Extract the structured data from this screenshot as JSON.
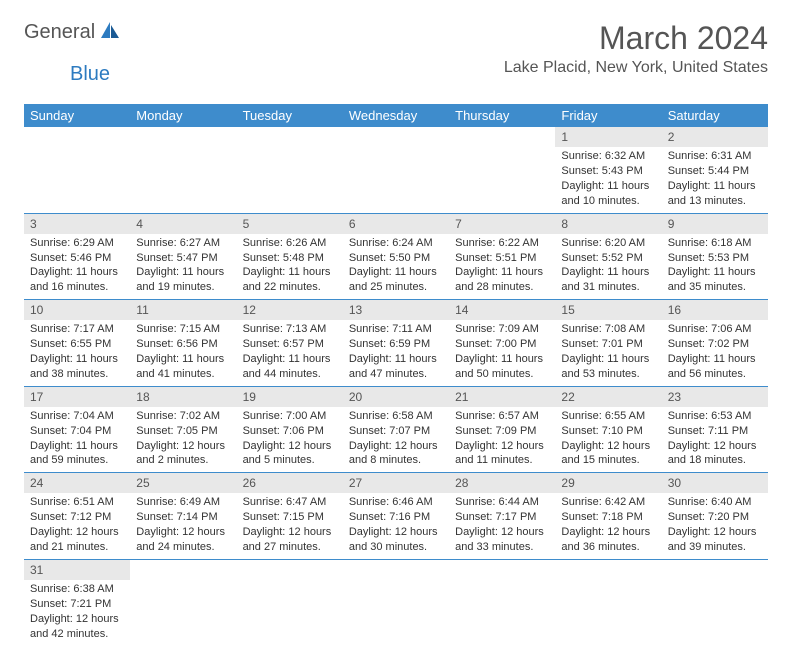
{
  "brand": {
    "general": "General",
    "blue": "Blue"
  },
  "title": "March 2024",
  "location": "Lake Placid, New York, United States",
  "colors": {
    "header_bg": "#3e8ccc",
    "header_text": "#ffffff",
    "daynum_bg": "#e8e8e8",
    "border": "#3e8ccc",
    "brand_blue": "#2d7bc0",
    "text": "#555555"
  },
  "dow": [
    "Sunday",
    "Monday",
    "Tuesday",
    "Wednesday",
    "Thursday",
    "Friday",
    "Saturday"
  ],
  "weeks": [
    [
      null,
      null,
      null,
      null,
      null,
      {
        "n": "1",
        "sr": "Sunrise: 6:32 AM",
        "ss": "Sunset: 5:43 PM",
        "dl": "Daylight: 11 hours and 10 minutes."
      },
      {
        "n": "2",
        "sr": "Sunrise: 6:31 AM",
        "ss": "Sunset: 5:44 PM",
        "dl": "Daylight: 11 hours and 13 minutes."
      }
    ],
    [
      {
        "n": "3",
        "sr": "Sunrise: 6:29 AM",
        "ss": "Sunset: 5:46 PM",
        "dl": "Daylight: 11 hours and 16 minutes."
      },
      {
        "n": "4",
        "sr": "Sunrise: 6:27 AM",
        "ss": "Sunset: 5:47 PM",
        "dl": "Daylight: 11 hours and 19 minutes."
      },
      {
        "n": "5",
        "sr": "Sunrise: 6:26 AM",
        "ss": "Sunset: 5:48 PM",
        "dl": "Daylight: 11 hours and 22 minutes."
      },
      {
        "n": "6",
        "sr": "Sunrise: 6:24 AM",
        "ss": "Sunset: 5:50 PM",
        "dl": "Daylight: 11 hours and 25 minutes."
      },
      {
        "n": "7",
        "sr": "Sunrise: 6:22 AM",
        "ss": "Sunset: 5:51 PM",
        "dl": "Daylight: 11 hours and 28 minutes."
      },
      {
        "n": "8",
        "sr": "Sunrise: 6:20 AM",
        "ss": "Sunset: 5:52 PM",
        "dl": "Daylight: 11 hours and 31 minutes."
      },
      {
        "n": "9",
        "sr": "Sunrise: 6:18 AM",
        "ss": "Sunset: 5:53 PM",
        "dl": "Daylight: 11 hours and 35 minutes."
      }
    ],
    [
      {
        "n": "10",
        "sr": "Sunrise: 7:17 AM",
        "ss": "Sunset: 6:55 PM",
        "dl": "Daylight: 11 hours and 38 minutes."
      },
      {
        "n": "11",
        "sr": "Sunrise: 7:15 AM",
        "ss": "Sunset: 6:56 PM",
        "dl": "Daylight: 11 hours and 41 minutes."
      },
      {
        "n": "12",
        "sr": "Sunrise: 7:13 AM",
        "ss": "Sunset: 6:57 PM",
        "dl": "Daylight: 11 hours and 44 minutes."
      },
      {
        "n": "13",
        "sr": "Sunrise: 7:11 AM",
        "ss": "Sunset: 6:59 PM",
        "dl": "Daylight: 11 hours and 47 minutes."
      },
      {
        "n": "14",
        "sr": "Sunrise: 7:09 AM",
        "ss": "Sunset: 7:00 PM",
        "dl": "Daylight: 11 hours and 50 minutes."
      },
      {
        "n": "15",
        "sr": "Sunrise: 7:08 AM",
        "ss": "Sunset: 7:01 PM",
        "dl": "Daylight: 11 hours and 53 minutes."
      },
      {
        "n": "16",
        "sr": "Sunrise: 7:06 AM",
        "ss": "Sunset: 7:02 PM",
        "dl": "Daylight: 11 hours and 56 minutes."
      }
    ],
    [
      {
        "n": "17",
        "sr": "Sunrise: 7:04 AM",
        "ss": "Sunset: 7:04 PM",
        "dl": "Daylight: 11 hours and 59 minutes."
      },
      {
        "n": "18",
        "sr": "Sunrise: 7:02 AM",
        "ss": "Sunset: 7:05 PM",
        "dl": "Daylight: 12 hours and 2 minutes."
      },
      {
        "n": "19",
        "sr": "Sunrise: 7:00 AM",
        "ss": "Sunset: 7:06 PM",
        "dl": "Daylight: 12 hours and 5 minutes."
      },
      {
        "n": "20",
        "sr": "Sunrise: 6:58 AM",
        "ss": "Sunset: 7:07 PM",
        "dl": "Daylight: 12 hours and 8 minutes."
      },
      {
        "n": "21",
        "sr": "Sunrise: 6:57 AM",
        "ss": "Sunset: 7:09 PM",
        "dl": "Daylight: 12 hours and 11 minutes."
      },
      {
        "n": "22",
        "sr": "Sunrise: 6:55 AM",
        "ss": "Sunset: 7:10 PM",
        "dl": "Daylight: 12 hours and 15 minutes."
      },
      {
        "n": "23",
        "sr": "Sunrise: 6:53 AM",
        "ss": "Sunset: 7:11 PM",
        "dl": "Daylight: 12 hours and 18 minutes."
      }
    ],
    [
      {
        "n": "24",
        "sr": "Sunrise: 6:51 AM",
        "ss": "Sunset: 7:12 PM",
        "dl": "Daylight: 12 hours and 21 minutes."
      },
      {
        "n": "25",
        "sr": "Sunrise: 6:49 AM",
        "ss": "Sunset: 7:14 PM",
        "dl": "Daylight: 12 hours and 24 minutes."
      },
      {
        "n": "26",
        "sr": "Sunrise: 6:47 AM",
        "ss": "Sunset: 7:15 PM",
        "dl": "Daylight: 12 hours and 27 minutes."
      },
      {
        "n": "27",
        "sr": "Sunrise: 6:46 AM",
        "ss": "Sunset: 7:16 PM",
        "dl": "Daylight: 12 hours and 30 minutes."
      },
      {
        "n": "28",
        "sr": "Sunrise: 6:44 AM",
        "ss": "Sunset: 7:17 PM",
        "dl": "Daylight: 12 hours and 33 minutes."
      },
      {
        "n": "29",
        "sr": "Sunrise: 6:42 AM",
        "ss": "Sunset: 7:18 PM",
        "dl": "Daylight: 12 hours and 36 minutes."
      },
      {
        "n": "30",
        "sr": "Sunrise: 6:40 AM",
        "ss": "Sunset: 7:20 PM",
        "dl": "Daylight: 12 hours and 39 minutes."
      }
    ],
    [
      {
        "n": "31",
        "sr": "Sunrise: 6:38 AM",
        "ss": "Sunset: 7:21 PM",
        "dl": "Daylight: 12 hours and 42 minutes."
      },
      null,
      null,
      null,
      null,
      null,
      null
    ]
  ]
}
